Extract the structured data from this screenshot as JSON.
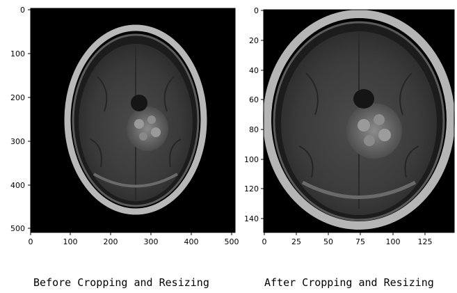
{
  "panels": [
    {
      "caption": "Before Cropping and Resizing",
      "x_ticks": [
        "0",
        "100",
        "200",
        "300",
        "400",
        "500"
      ],
      "y_ticks": [
        "0",
        "100",
        "200",
        "300",
        "400",
        "500"
      ]
    },
    {
      "caption": "After Cropping and Resizing",
      "x_ticks": [
        "0",
        "25",
        "50",
        "75",
        "100",
        "125"
      ],
      "y_ticks": [
        "0",
        "20",
        "40",
        "60",
        "80",
        "100",
        "120",
        "140"
      ]
    }
  ]
}
